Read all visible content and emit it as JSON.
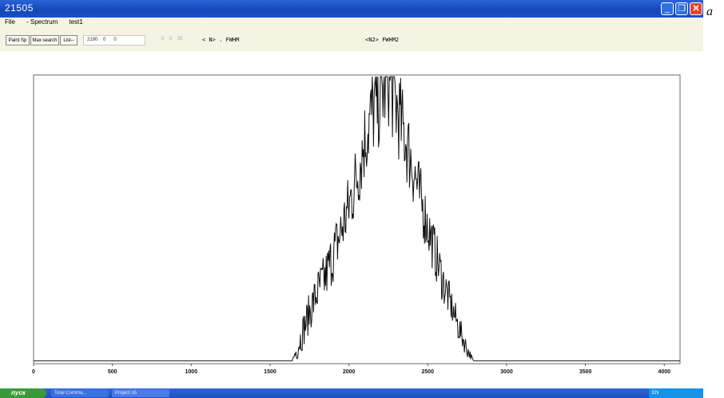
{
  "window": {
    "title": "21505"
  },
  "window_controls": {
    "min_glyph": "_",
    "max_glyph": "❐",
    "close_glyph": "✕"
  },
  "menu": {
    "items": [
      "File",
      "- Spectrum",
      "test1"
    ]
  },
  "toolbar": {
    "buttons": [
      "Paint Sp",
      "Max search",
      "List--"
    ],
    "input_value": "2190    0      0",
    "grey_values": "0    0    30",
    "n_label": "< N> . FWHM",
    "n2_label": "<N2>  FWHM2"
  },
  "taskbar": {
    "start_label": "пуск",
    "tasks": [
      "Total Comma...",
      "Project.n5"
    ],
    "tray_text": "EN"
  },
  "figure_letter": "a",
  "chart_data": {
    "type": "line",
    "title": "",
    "xlabel": "",
    "ylabel": "",
    "xlim": [
      0,
      4100
    ],
    "ylim": [
      0,
      1
    ],
    "xticks": [
      0,
      500,
      1000,
      1500,
      2000,
      2500,
      3000,
      3500,
      4000
    ],
    "grid": false,
    "line_color": "#111111",
    "series": [
      {
        "x": [
          0,
          1500,
          1640,
          1670,
          1700,
          1750,
          1800,
          1850,
          1900,
          1950,
          2000,
          2050,
          2100,
          2150,
          2200,
          2250,
          2300,
          2350,
          2400,
          2450,
          2500,
          2550,
          2600,
          2650,
          2700,
          2750,
          2790,
          2850,
          4100
        ],
        "y": [
          0.01,
          0.01,
          0.01,
          0.05,
          0.1,
          0.18,
          0.25,
          0.3,
          0.38,
          0.46,
          0.55,
          0.65,
          0.78,
          0.88,
          0.93,
          1.0,
          0.9,
          0.8,
          0.7,
          0.58,
          0.48,
          0.38,
          0.28,
          0.2,
          0.12,
          0.05,
          0.01,
          0.01,
          0.01
        ],
        "noise": [
          0,
          0,
          0,
          0.04,
          0.06,
          0.07,
          0.08,
          0.09,
          0.1,
          0.11,
          0.12,
          0.14,
          0.15,
          0.17,
          0.18,
          0.18,
          0.17,
          0.15,
          0.14,
          0.12,
          0.1,
          0.09,
          0.08,
          0.06,
          0.05,
          0.03,
          0,
          0,
          0
        ]
      }
    ]
  }
}
